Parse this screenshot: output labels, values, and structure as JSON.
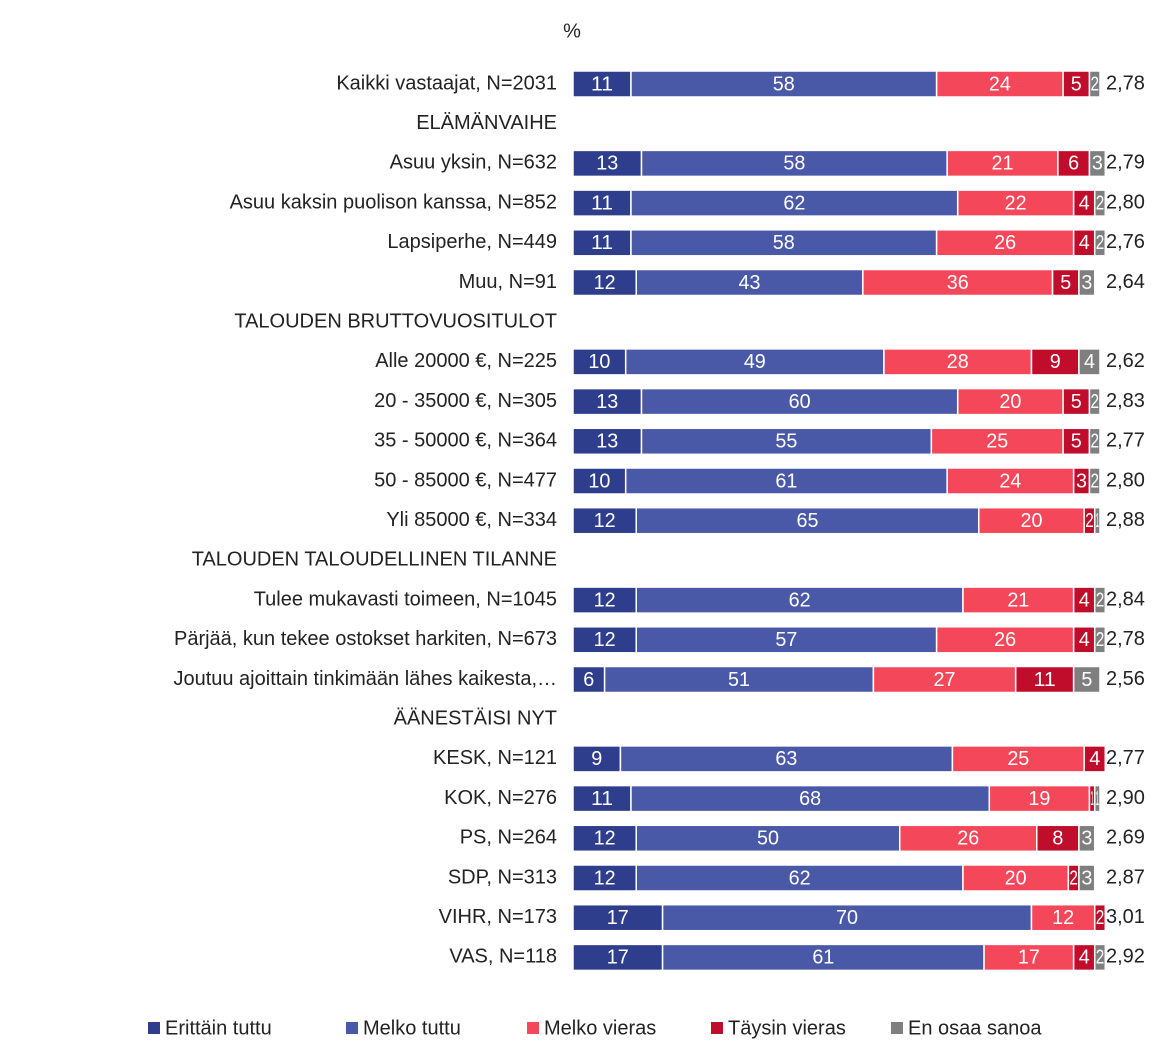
{
  "chart_data": {
    "type": "stacked-barh",
    "title": "%",
    "categories": [
      "Kaikki vastaajat, N=2031",
      "ELÄMÄNVAIHE",
      "Asuu yksin, N=632",
      "Asuu kaksin puolison kanssa, N=852",
      "Lapsiperhe, N=449",
      "Muu, N=91",
      "TALOUDEN BRUTTOVUOSITULOT",
      "Alle 20000 €, N=225",
      "20 - 35000 €, N=305",
      "35 - 50000 €, N=364",
      "50 - 85000 €, N=477",
      "Yli 85000 €, N=334",
      "TALOUDEN TALOUDELLINEN TILANNE",
      "Tulee mukavasti toimeen, N=1045",
      "Pärjää, kun tekee ostokset harkiten, N=673",
      "Joutuu ajoittain tinkimään lähes kaikesta,…",
      "ÄÄNESTÄISI NYT",
      "KESK, N=121",
      "KOK, N=276",
      "PS, N=264",
      "SDP, N=313",
      "VIHR, N=173",
      "VAS, N=118"
    ],
    "series": [
      {
        "name": "Erittäin tuttu",
        "color": "#2e3d8c",
        "values": [
          11,
          null,
          13,
          11,
          11,
          12,
          null,
          10,
          13,
          13,
          10,
          12,
          null,
          12,
          12,
          6,
          null,
          9,
          11,
          12,
          12,
          17,
          17
        ]
      },
      {
        "name": "Melko tuttu",
        "color": "#4a59a7",
        "values": [
          58,
          null,
          58,
          62,
          58,
          43,
          null,
          49,
          60,
          55,
          61,
          65,
          null,
          62,
          57,
          51,
          null,
          63,
          68,
          50,
          62,
          70,
          61
        ]
      },
      {
        "name": "Melko vieras",
        "color": "#f5475a",
        "values": [
          24,
          null,
          21,
          22,
          26,
          36,
          null,
          28,
          20,
          25,
          24,
          20,
          null,
          21,
          26,
          27,
          null,
          25,
          19,
          26,
          20,
          12,
          17
        ]
      },
      {
        "name": "Täysin vieras",
        "color": "#c00d2b",
        "values": [
          5,
          null,
          6,
          4,
          4,
          5,
          null,
          9,
          5,
          5,
          3,
          2,
          null,
          4,
          4,
          11,
          null,
          4,
          1,
          8,
          2,
          2,
          4
        ]
      },
      {
        "name": "En osaa sanoa",
        "color": "#7f7f7f",
        "values": [
          2,
          null,
          3,
          2,
          2,
          3,
          null,
          4,
          2,
          2,
          2,
          1,
          null,
          2,
          2,
          5,
          null,
          null,
          1,
          3,
          3,
          null,
          2
        ]
      }
    ],
    "means": [
      2.78,
      null,
      2.79,
      2.8,
      2.76,
      2.64,
      null,
      2.62,
      2.83,
      2.77,
      2.8,
      2.88,
      null,
      2.84,
      2.78,
      2.56,
      null,
      2.77,
      2.9,
      2.69,
      2.87,
      3.01,
      2.92
    ],
    "mean_labels": [
      "2,78",
      null,
      "2,79",
      "2,80",
      "2,76",
      "2,64",
      null,
      "2,62",
      "2,83",
      "2,77",
      "2,80",
      "2,88",
      null,
      "2,84",
      "2,78",
      "2,56",
      null,
      "2,77",
      "2,90",
      "2,69",
      "2,87",
      "3,01",
      "2,92"
    ],
    "xlim": [
      0,
      100
    ],
    "legend": "bottom"
  }
}
